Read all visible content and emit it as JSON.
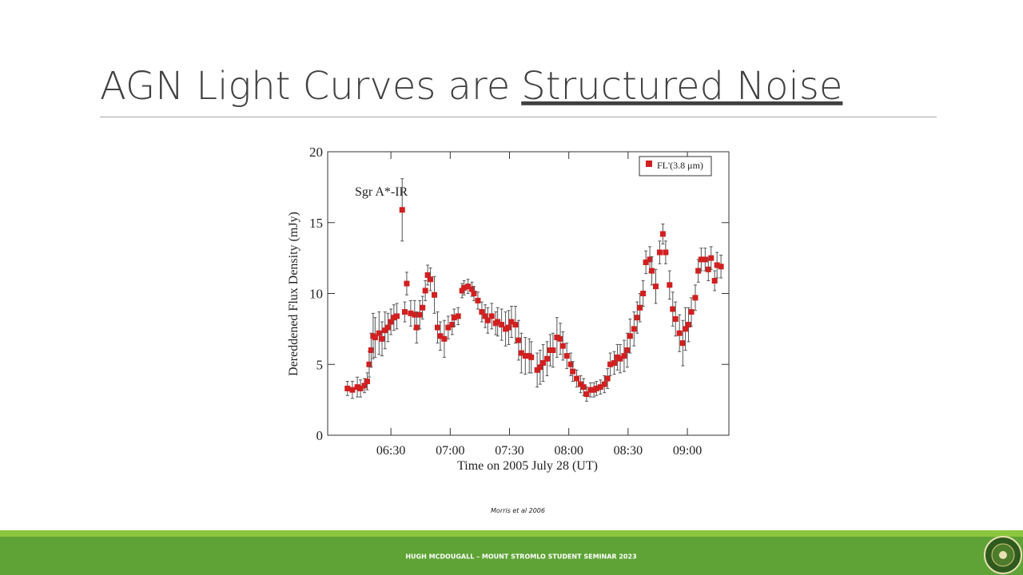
{
  "slide": {
    "title_plain": "AGN Light Curves are",
    "title_emphasis": "Structured Noise",
    "caption": "Morris et al 2006",
    "footer": "HUGH MCDOUGALL – MOUNT STROMLO STUDENT SEMINAR 2023"
  },
  "chart_data": {
    "type": "scatter",
    "annotation": "Sgr A*-IR",
    "x_label": "Time on 2005 July 28 (UT)",
    "y_label": "Dereddened Flux Density (mJy)",
    "xlim": [
      358,
      561
    ],
    "ylim": [
      0,
      20
    ],
    "xticks": [
      {
        "value": 390,
        "label": "06:30"
      },
      {
        "value": 420,
        "label": "07:00"
      },
      {
        "value": 450,
        "label": "07:30"
      },
      {
        "value": 480,
        "label": "08:00"
      },
      {
        "value": 510,
        "label": "08:30"
      },
      {
        "value": 540,
        "label": "09:00"
      }
    ],
    "yticks": [
      0,
      5,
      10,
      15,
      20
    ],
    "legend": "upper right",
    "x": [
      368,
      370.5,
      373,
      374.6,
      376.6,
      378,
      379,
      380,
      381,
      382,
      384,
      385.5,
      387,
      388.5,
      390,
      391.5,
      393,
      395.7,
      397,
      398,
      400,
      402,
      403,
      404.6,
      406,
      407.4,
      408.6,
      410,
      412,
      413.6,
      415,
      417,
      419,
      421,
      422,
      424,
      426,
      427,
      429,
      431,
      432,
      434,
      436,
      437.7,
      439,
      441,
      443,
      444,
      446,
      448,
      449.6,
      451,
      453,
      454.6,
      456,
      458,
      460,
      461,
      464,
      465.5,
      467,
      469,
      470.6,
      472,
      474,
      475.7,
      477,
      479,
      481,
      482,
      484,
      486,
      487.5,
      489,
      491,
      492.7,
      494,
      496,
      498,
      499.6,
      501,
      503,
      504.6,
      506,
      508,
      509.6,
      511,
      513,
      514.6,
      516,
      517.6,
      519,
      521,
      522,
      524,
      526,
      527.6,
      529,
      531,
      532.6,
      534,
      536,
      537.7,
      539,
      540.6,
      542,
      544,
      545.5,
      547,
      549,
      550.6,
      552,
      553.8,
      555,
      557
    ],
    "series": [
      {
        "name": "FL'(3.8 μm)",
        "color": "#d21f1f",
        "values": [
          3.3,
          3.2,
          3.4,
          3.3,
          3.5,
          3.8,
          5.0,
          6.0,
          7.0,
          6.9,
          7.2,
          6.8,
          7.4,
          7.6,
          8.0,
          8.3,
          8.4,
          15.9,
          8.7,
          10.7,
          8.6,
          8.5,
          7.6,
          8.5,
          9.0,
          10.2,
          11.3,
          11.0,
          9.9,
          7.6,
          7.0,
          6.8,
          7.6,
          7.8,
          8.3,
          8.4,
          10.2,
          10.4,
          10.5,
          10.3,
          10.0,
          9.5,
          8.7,
          8.4,
          8.1,
          8.4,
          7.9,
          8.0,
          7.8,
          7.5,
          7.6,
          8.0,
          7.8,
          6.7,
          5.8,
          5.6,
          5.6,
          5.5,
          4.6,
          4.8,
          5.1,
          5.4,
          6.0,
          6.0,
          6.9,
          6.8,
          6.3,
          5.6,
          5.0,
          4.5,
          4.0,
          3.6,
          3.4,
          2.9,
          3.2,
          3.2,
          3.3,
          3.4,
          3.6,
          4.0,
          5.0,
          5.1,
          5.5,
          5.4,
          5.6,
          6.0,
          7.0,
          7.5,
          8.3,
          9.0,
          10.0,
          12.2,
          12.4,
          11.6,
          10.5,
          12.9,
          14.2,
          12.9,
          10.6,
          8.9,
          8.2,
          7.2,
          6.5,
          7.5,
          7.8,
          8.7,
          9.7,
          11.6,
          12.4,
          12.4,
          11.7,
          12.5,
          10.9,
          12.0,
          11.9
        ],
        "errors": [
          0.5,
          0.6,
          0.7,
          0.6,
          0.5,
          0.6,
          0.9,
          1.2,
          1.6,
          1.4,
          1.5,
          1.2,
          1.3,
          1.0,
          0.9,
          0.9,
          0.9,
          2.2,
          0.7,
          0.8,
          0.9,
          1.0,
          1.1,
          1.0,
          0.8,
          0.7,
          0.7,
          0.8,
          1.3,
          1.1,
          1.0,
          1.3,
          0.8,
          0.7,
          0.6,
          0.6,
          0.5,
          0.5,
          0.5,
          0.5,
          0.5,
          0.6,
          0.7,
          0.8,
          0.9,
          0.9,
          0.8,
          1.0,
          1.1,
          1.2,
          1.2,
          1.1,
          1.3,
          1.4,
          1.4,
          1.3,
          1.2,
          1.1,
          1.2,
          1.2,
          1.3,
          1.2,
          1.1,
          1.2,
          1.4,
          1.1,
          1.0,
          0.9,
          0.8,
          0.7,
          0.6,
          0.6,
          0.6,
          0.5,
          0.5,
          0.5,
          0.5,
          0.5,
          0.6,
          0.7,
          0.8,
          0.8,
          0.9,
          1.0,
          1.1,
          1.2,
          1.2,
          1.2,
          1.1,
          1.0,
          0.9,
          0.8,
          0.9,
          1.0,
          1.2,
          0.8,
          0.7,
          0.8,
          1.0,
          1.2,
          1.2,
          1.3,
          1.6,
          1.5,
          1.2,
          1.0,
          0.9,
          0.8,
          0.8,
          0.8,
          0.8,
          0.8,
          0.7,
          0.9,
          0.8
        ]
      }
    ]
  }
}
